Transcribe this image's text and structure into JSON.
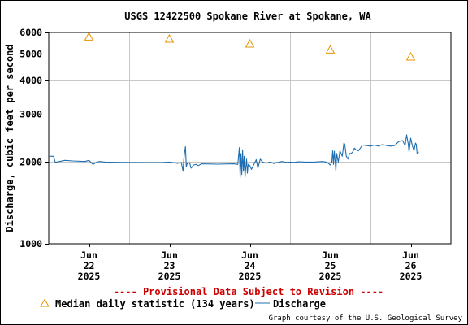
{
  "chart_data": {
    "type": "line",
    "title": "USGS 12422500 Spokane River at Spokane, WA",
    "ylabel": "Discharge, cubic feet per second",
    "xlabel": "",
    "y_scale": "log",
    "ylim": [
      1000,
      6000
    ],
    "xlim": [
      21.5,
      26.5
    ],
    "y_ticks": [
      "1000",
      "2000",
      "3000",
      "4000",
      "5000",
      "6000"
    ],
    "y_tick_values": [
      1000,
      2000,
      3000,
      4000,
      5000,
      6000
    ],
    "x_ticks": [
      {
        "value": 22,
        "month": "Jun",
        "day": "22",
        "year": "2025"
      },
      {
        "value": 23,
        "month": "Jun",
        "day": "23",
        "year": "2025"
      },
      {
        "value": 24,
        "month": "Jun",
        "day": "24",
        "year": "2025"
      },
      {
        "value": 25,
        "month": "Jun",
        "day": "25",
        "year": "2025"
      },
      {
        "value": 26,
        "month": "Jun",
        "day": "26",
        "year": "2025"
      }
    ],
    "grid": true,
    "series": [
      {
        "name": "Median daily statistic (134 years)",
        "marker": "triangle",
        "color": "#e69500",
        "x": [
          22,
          23,
          24,
          25,
          26
        ],
        "y": [
          5780,
          5680,
          5450,
          5180,
          4880
        ]
      },
      {
        "name": "Discharge",
        "marker": "line",
        "color": "#1f6fb0",
        "x": [
          21.5,
          21.56,
          21.58,
          21.6,
          21.7,
          21.8,
          21.95,
          22.0,
          22.05,
          22.1,
          22.13,
          22.2,
          22.4,
          22.7,
          22.8,
          22.9,
          23.0,
          23.1,
          23.15,
          23.17,
          23.18,
          23.19,
          23.2,
          23.21,
          23.22,
          23.25,
          23.27,
          23.3,
          23.33,
          23.36,
          23.4,
          23.6,
          23.8,
          23.85,
          23.87,
          23.88,
          23.89,
          23.9,
          23.91,
          23.92,
          23.93,
          23.94,
          23.95,
          23.96,
          23.97,
          23.98,
          24.0,
          24.02,
          24.05,
          24.08,
          24.1,
          24.13,
          24.16,
          24.2,
          24.25,
          24.3,
          24.33,
          24.36,
          24.4,
          24.45,
          24.5,
          24.55,
          24.6,
          24.7,
          24.8,
          24.9,
          24.95,
          24.98,
          25.0,
          25.02,
          25.03,
          25.04,
          25.05,
          25.06,
          25.07,
          25.08,
          25.1,
          25.12,
          25.15,
          25.17,
          25.18,
          25.2,
          25.22,
          25.24,
          25.26,
          25.28,
          25.3,
          25.32,
          25.35,
          25.4,
          25.45,
          25.5,
          25.55,
          25.6,
          25.65,
          25.7,
          25.75,
          25.8,
          25.85,
          25.9,
          25.93,
          25.95,
          25.97,
          25.98,
          26.0,
          26.02,
          26.04,
          26.06,
          26.07,
          26.08,
          26.1
        ],
        "y": [
          2100,
          2100,
          2000,
          2000,
          2030,
          2020,
          2010,
          2030,
          1960,
          2000,
          2010,
          2000,
          1995,
          1990,
          1990,
          1990,
          2000,
          1980,
          1990,
          1850,
          2050,
          2180,
          2280,
          1920,
          1970,
          1990,
          1900,
          1950,
          1960,
          1940,
          1970,
          1965,
          1970,
          1960,
          2260,
          1750,
          2150,
          1800,
          2220,
          1850,
          2100,
          1760,
          1900,
          2050,
          1820,
          1960,
          1940,
          1880,
          1960,
          2040,
          1900,
          2050,
          2000,
          1980,
          2000,
          1975,
          1990,
          1995,
          2010,
          1995,
          2000,
          1995,
          2005,
          2000,
          2000,
          2010,
          2000,
          1975,
          1950,
          2000,
          2200,
          1960,
          2190,
          2040,
          1850,
          2150,
          2000,
          2200,
          2100,
          2350,
          2330,
          2100,
          2050,
          2150,
          2150,
          2180,
          2250,
          2220,
          2200,
          2310,
          2300,
          2290,
          2310,
          2290,
          2320,
          2300,
          2290,
          2300,
          2380,
          2400,
          2300,
          2520,
          2330,
          2180,
          2450,
          2300,
          2200,
          2350,
          2320,
          2150,
          2180
        ]
      }
    ]
  },
  "notice": "---- Provisional Data Subject to Revision ----",
  "credit": "Graph courtesy of the U.S. Geological Survey",
  "colors": {
    "grid": "#c8c8c8",
    "notice": "#cc0000",
    "median": "#e69500",
    "discharge": "#1f6fb0"
  }
}
